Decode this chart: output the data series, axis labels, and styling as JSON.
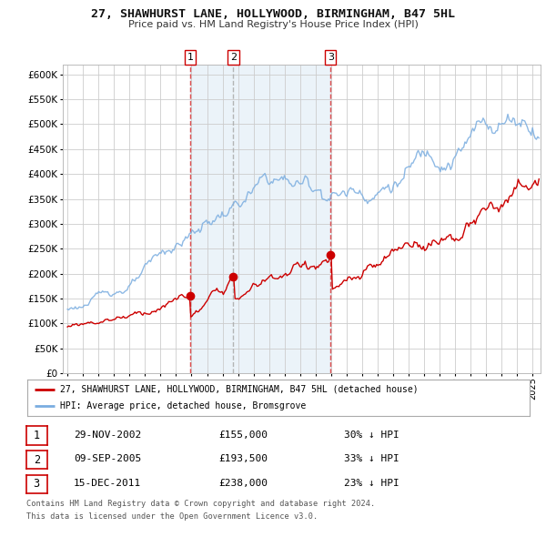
{
  "title": "27, SHAWHURST LANE, HOLLYWOOD, BIRMINGHAM, B47 5HL",
  "subtitle": "Price paid vs. HM Land Registry's House Price Index (HPI)",
  "ylim": [
    0,
    620000
  ],
  "xlim_start": 1994.7,
  "xlim_end": 2025.5,
  "background_color": "#ffffff",
  "grid_color": "#cccccc",
  "red_line_color": "#cc0000",
  "blue_line_color": "#7aade0",
  "sale_marker_color": "#cc0000",
  "vline1_color": "#dd3333",
  "vline2_color": "#aaaaaa",
  "vline3_color": "#dd3333",
  "shade_color": "#d8e8f5",
  "legend_red_label": "27, SHAWHURST LANE, HOLLYWOOD, BIRMINGHAM, B47 5HL (detached house)",
  "legend_blue_label": "HPI: Average price, detached house, Bromsgrove",
  "transactions": [
    {
      "num": 1,
      "date_label": "29-NOV-2002",
      "date_x": 2002.91,
      "price": 155000,
      "price_label": "£155,000",
      "hpi_pct": "30% ↓ HPI"
    },
    {
      "num": 2,
      "date_label": "09-SEP-2005",
      "date_x": 2005.69,
      "price": 193500,
      "price_label": "£193,500",
      "hpi_pct": "33% ↓ HPI"
    },
    {
      "num": 3,
      "date_label": "15-DEC-2011",
      "date_x": 2011.96,
      "price": 238000,
      "price_label": "£238,000",
      "hpi_pct": "23% ↓ HPI"
    }
  ],
  "footer_line1": "Contains HM Land Registry data © Crown copyright and database right 2024.",
  "footer_line2": "This data is licensed under the Open Government Licence v3.0."
}
